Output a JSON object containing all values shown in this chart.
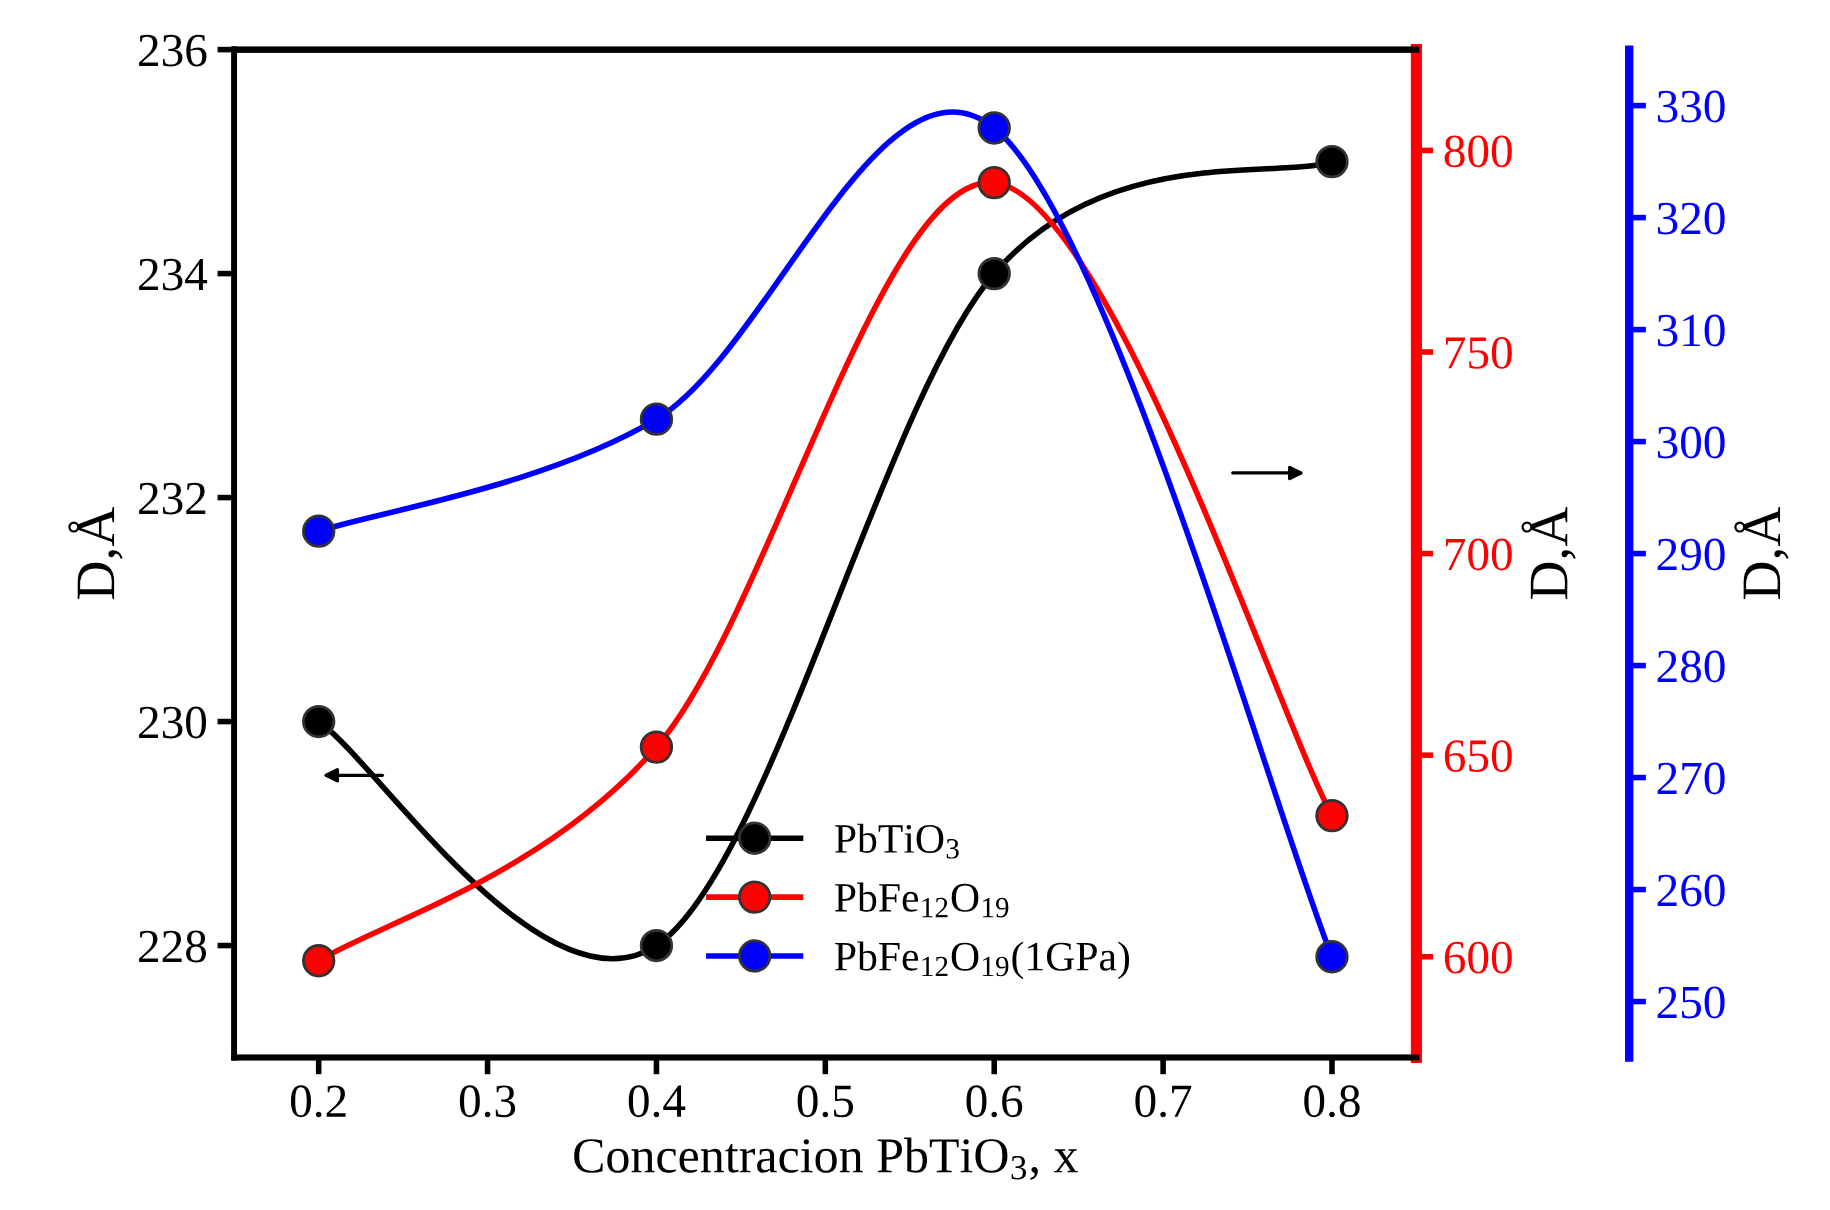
{
  "chart_data": {
    "type": "line",
    "xlabel": "Concentracion PbTiO$_{3}$, x",
    "ylabel": "D,Å",
    "y2label": "D,Å",
    "y3label": "D,Å",
    "x": [
      0.2,
      0.4,
      0.6,
      0.8
    ],
    "xlim": [
      0.15,
      0.85
    ],
    "xticks": [
      0.2,
      0.3,
      0.4,
      0.5,
      0.6,
      0.7,
      0.8
    ],
    "ylim": [
      227,
      236
    ],
    "yticks": [
      228,
      230,
      232,
      234,
      236
    ],
    "y2lim": [
      575,
      825
    ],
    "y2ticks": [
      600,
      650,
      700,
      750,
      800
    ],
    "y3lim": [
      245,
      335
    ],
    "y3ticks": [
      250,
      260,
      270,
      280,
      290,
      300,
      310,
      320,
      330
    ],
    "marker": "circle",
    "line_style": "solid",
    "legend": "bottom",
    "grid": false,
    "series": [
      {
        "name": "PbTiO$_{3}$",
        "color": "#000000",
        "values": [
          230,
          228,
          234,
          235
        ]
      },
      {
        "name": "PbFe$_{12}$O$_{19}$",
        "color": "#ff0000",
        "axis": "y2",
        "values": [
          599,
          652,
          792,
          635
        ]
      },
      {
        "name": "PbFe$_{12}$O$_{19}$(1GPa)",
        "color": "#0000ff",
        "axis": "y3",
        "values": [
          292,
          302,
          328,
          254
        ]
      }
    ]
  }
}
